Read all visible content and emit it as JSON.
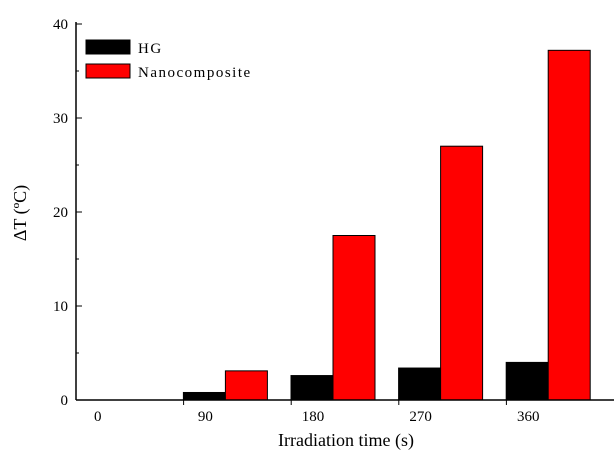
{
  "chart_data": {
    "type": "bar",
    "categories": [
      "0",
      "90",
      "180",
      "270",
      "360"
    ],
    "series": [
      {
        "name": "HG",
        "values": [
          0,
          0.8,
          2.6,
          3.4,
          4.0
        ],
        "color": "#000000"
      },
      {
        "name": "Nanocomposite",
        "values": [
          0,
          3.1,
          17.5,
          27.0,
          37.2
        ],
        "color": "#ff0000"
      }
    ],
    "xlabel": "Irradiation time (s)",
    "ylabel": "ΔT (ºC)",
    "ylim": [
      0,
      40
    ],
    "yticks": [
      "0",
      "10",
      "20",
      "30",
      "40"
    ],
    "grid": false,
    "legend_position": "top-left"
  }
}
